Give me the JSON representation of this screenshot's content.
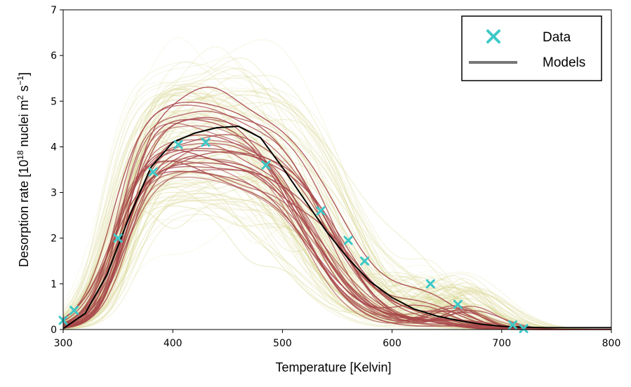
{
  "chart_data": {
    "type": "line",
    "xlabel": "Temperature [Kelvin]",
    "ylabel_parts": [
      "Desorption rate [10",
      "18",
      " nuclei m",
      "2",
      " s",
      "−1",
      "]"
    ],
    "xlim": [
      300,
      800
    ],
    "ylim": [
      0,
      7
    ],
    "xticks": [
      "300",
      "400",
      "500",
      "600",
      "700",
      "800"
    ],
    "yticks": [
      "0",
      "1",
      "2",
      "3",
      "4",
      "5",
      "6",
      "7"
    ],
    "grid": false,
    "legend_position": "top-right",
    "colors": {
      "data": "#3ec8c8",
      "model_dark": "#000000",
      "model_red": "#a8484a",
      "model_yellow": "#d8d690",
      "legend_models": "#777777"
    },
    "series": [
      {
        "name": "Data",
        "kind": "scatter",
        "marker": "x",
        "x": [
          300,
          310,
          350,
          382,
          405,
          430,
          485,
          535,
          560,
          575,
          635,
          660,
          710,
          720
        ],
        "y": [
          0.2,
          0.42,
          2.0,
          3.45,
          4.05,
          4.1,
          3.6,
          2.6,
          1.95,
          1.5,
          1.0,
          0.55,
          0.1,
          0.02
        ]
      },
      {
        "name": "Models",
        "kind": "line",
        "x": [
          300,
          320,
          340,
          360,
          380,
          400,
          420,
          440,
          460,
          480,
          500,
          520,
          540,
          560,
          580,
          600,
          620,
          640,
          660,
          680,
          700,
          720,
          740,
          760,
          780,
          800
        ],
        "y": [
          0.02,
          0.35,
          1.2,
          2.45,
          3.55,
          4.1,
          4.3,
          4.42,
          4.45,
          4.2,
          3.55,
          2.85,
          2.15,
          1.55,
          1.05,
          0.7,
          0.45,
          0.3,
          0.2,
          0.12,
          0.07,
          0.05,
          0.04,
          0.04,
          0.04,
          0.04
        ]
      }
    ]
  }
}
